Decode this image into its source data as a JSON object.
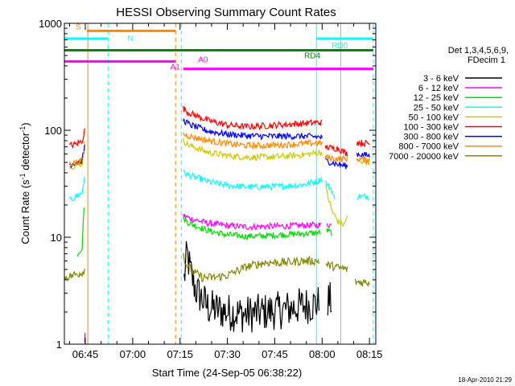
{
  "chart_data": {
    "type": "line",
    "title": "HESSI Observing Summary Count Rates",
    "xlabel": "Start Time (24-Sep-05 06:38:22)",
    "ylabel_main": "Count Rate (s",
    "ylabel_sup1": "-1",
    "ylabel_mid": " detector",
    "ylabel_sup2": "-1",
    "ylabel_end": ")",
    "yscale": "log",
    "ylim": [
      1,
      1000
    ],
    "xlim_minutes": [
      398.37,
      497.0
    ],
    "xticks": [
      {
        "label": "06:45",
        "value": 405
      },
      {
        "label": "07:00",
        "value": 420
      },
      {
        "label": "07:15",
        "value": 435
      },
      {
        "label": "07:30",
        "value": 450
      },
      {
        "label": "07:45",
        "value": 465
      },
      {
        "label": "08:00",
        "value": 480
      },
      {
        "label": "08:15",
        "value": 495
      }
    ],
    "yticks": [
      {
        "label": "1",
        "value": 1
      },
      {
        "label": "10",
        "value": 10
      },
      {
        "label": "100",
        "value": 100
      },
      {
        "label": "1000",
        "value": 1000
      }
    ],
    "legend": {
      "header1": "Det 1,3,4,5,6,9,",
      "header2": "FDecim 1",
      "placement": "right"
    },
    "series": [
      {
        "name": "3 - 6 keV",
        "color": "#000000",
        "segments": [
          [
            [
              436.3,
              4
            ],
            [
              437.2,
              7
            ],
            [
              438.5,
              4.5
            ],
            [
              440,
              3.2
            ],
            [
              444,
              2.2
            ],
            [
              450,
              2.0
            ],
            [
              456,
              1.9
            ],
            [
              462,
              2.0
            ],
            [
              468,
              2.1
            ],
            [
              474,
              2.3
            ],
            [
              479,
              2.4
            ]
          ],
          [
            [
              481.8,
              2.6
            ],
            [
              483,
              2.5
            ]
          ]
        ]
      },
      {
        "name": "6 - 12 keV",
        "color": "#ff00ff",
        "segments": [
          [
            [
              404.8,
              1.02
            ],
            [
              404.9,
              1.2
            ],
            [
              405,
              1.02
            ]
          ],
          [
            [
              436,
              16
            ],
            [
              438,
              15
            ],
            [
              444,
              13.5
            ],
            [
              450,
              12.8
            ],
            [
              456,
              12.5
            ],
            [
              462,
              12.6
            ],
            [
              468,
              12.7
            ],
            [
              474,
              12.9
            ],
            [
              479.5,
              13
            ]
          ],
          [
            [
              481.5,
              13.2
            ],
            [
              483,
              13
            ]
          ]
        ]
      },
      {
        "name": "12 - 25 keV",
        "color": "#00dd00",
        "segments": [
          [
            [
              402.5,
              7
            ],
            [
              404,
              8
            ],
            [
              404.6,
              20
            ]
          ],
          [
            [
              436,
              15
            ],
            [
              438,
              13.5
            ],
            [
              444,
              11.5
            ],
            [
              450,
              10.5
            ],
            [
              456,
              10.2
            ],
            [
              462,
              10.3
            ],
            [
              468,
              10.6
            ],
            [
              474,
              10.8
            ],
            [
              479.5,
              11
            ]
          ],
          [
            [
              481.5,
              11.5
            ],
            [
              483,
              11
            ]
          ]
        ]
      },
      {
        "name": "25 - 50 keV",
        "color": "#00ffff",
        "segments": [
          [
            [
              400,
              22
            ],
            [
              402,
              24
            ],
            [
              404,
              26
            ],
            [
              404.8,
              38
            ]
          ],
          [
            [
              436.2,
              40
            ],
            [
              438,
              38
            ],
            [
              444,
              33
            ],
            [
              450,
              30.5
            ],
            [
              456,
              29.5
            ],
            [
              462,
              29.5
            ],
            [
              468,
              30
            ],
            [
              474,
              31
            ],
            [
              478,
              33
            ],
            [
              480,
              35
            ]
          ],
          [
            [
              481,
              33
            ],
            [
              482,
              30
            ],
            [
              483,
              28
            ],
            [
              484,
              22
            ]
          ],
          [
            [
              491,
              24
            ],
            [
              495,
              24
            ]
          ]
        ]
      },
      {
        "name": "50 - 100 keV",
        "color": "#cccc00",
        "segments": [
          [
            [
              400,
              46
            ],
            [
              402,
              47
            ],
            [
              404,
              49
            ],
            [
              404.8,
              75
            ]
          ],
          [
            [
              436,
              80
            ],
            [
              438,
              72
            ],
            [
              444,
              62
            ],
            [
              450,
              58
            ],
            [
              456,
              56
            ],
            [
              462,
              56
            ],
            [
              468,
              57
            ],
            [
              474,
              59
            ],
            [
              478,
              61
            ],
            [
              480,
              62
            ]
          ],
          [
            [
              481,
              30
            ],
            [
              483,
              18
            ],
            [
              485,
              14
            ],
            [
              487,
              13
            ],
            [
              488,
              16
            ]
          ],
          [
            [
              490.8,
              52
            ],
            [
              495,
              51
            ]
          ]
        ]
      },
      {
        "name": "100 - 300 keV",
        "color": "#ff0000",
        "segments": [
          [
            [
              400,
              72
            ],
            [
              402,
              74
            ],
            [
              404,
              80
            ],
            [
              405,
              105
            ]
          ],
          [
            [
              436,
              160
            ],
            [
              438,
              145
            ],
            [
              444,
              123
            ],
            [
              450,
              112
            ],
            [
              456,
              108
            ],
            [
              462,
              110
            ],
            [
              468,
              113
            ],
            [
              474,
              116
            ],
            [
              478,
              118
            ],
            [
              480,
              118
            ]
          ],
          [
            [
              481,
              70
            ],
            [
              483,
              68
            ],
            [
              485,
              68
            ],
            [
              488,
              60
            ]
          ],
          [
            [
              491,
              77
            ],
            [
              495,
              75
            ]
          ]
        ]
      },
      {
        "name": "300 - 800 keV",
        "color": "#0000ff",
        "segments": [
          [
            [
              400,
              48
            ],
            [
              402,
              50
            ],
            [
              404,
              52
            ],
            [
              404.8,
              70
            ]
          ],
          [
            [
              436,
              125
            ],
            [
              438,
              113
            ],
            [
              444,
              98
            ],
            [
              450,
              92
            ],
            [
              456,
              89
            ],
            [
              462,
              88
            ],
            [
              468,
              88
            ],
            [
              474,
              88
            ],
            [
              478,
              87
            ],
            [
              480,
              86
            ]
          ],
          [
            [
              481,
              52
            ],
            [
              483,
              50
            ],
            [
              485,
              48
            ],
            [
              488,
              46
            ]
          ],
          [
            [
              491,
              60
            ],
            [
              495,
              58
            ]
          ]
        ]
      },
      {
        "name": "800 - 7000 keV",
        "color": "#ff8800",
        "segments": [
          [
            [
              400,
              49
            ],
            [
              402,
              50
            ],
            [
              404,
              52
            ],
            [
              404.8,
              66
            ]
          ],
          [
            [
              436,
              92
            ],
            [
              438,
              88
            ],
            [
              444,
              80
            ],
            [
              450,
              75
            ],
            [
              456,
              72
            ],
            [
              462,
              72
            ],
            [
              468,
              73
            ],
            [
              474,
              75
            ],
            [
              478,
              76
            ],
            [
              480,
              76
            ]
          ],
          [
            [
              481,
              56
            ],
            [
              483,
              55
            ],
            [
              485,
              54
            ],
            [
              488,
              54
            ]
          ],
          [
            [
              491,
              54
            ],
            [
              495,
              53
            ]
          ]
        ]
      },
      {
        "name": "7000 - 20000 keV",
        "color": "#888800",
        "segments": [
          [
            [
              398.5,
              4.2
            ],
            [
              400,
              4.3
            ],
            [
              402,
              4.5
            ],
            [
              404,
              4.7
            ],
            [
              404.8,
              5
            ]
          ],
          [
            [
              436,
              7
            ],
            [
              437,
              5.5
            ],
            [
              439,
              4.8
            ],
            [
              442,
              4.2
            ],
            [
              446,
              4.2
            ],
            [
              450,
              4.4
            ],
            [
              456,
              5.3
            ],
            [
              462,
              5.8
            ],
            [
              468,
              5.8
            ],
            [
              474,
              6.0
            ],
            [
              479,
              6.0
            ]
          ],
          [
            [
              481.2,
              5.5
            ],
            [
              483,
              5.4
            ],
            [
              485,
              5.2
            ],
            [
              488,
              5
            ]
          ],
          [
            [
              490.5,
              3.8
            ],
            [
              495,
              3.8
            ]
          ]
        ]
      }
    ],
    "annotations": {
      "flag_bars": [
        {
          "label": "S",
          "color": "#ff8800",
          "y": 850,
          "x0": 405.5,
          "x1": 433.6
        },
        {
          "label": "N",
          "color": "#00ffff",
          "y": 720,
          "x0": 398.4,
          "x1": 412.2
        },
        {
          "label": "RD0",
          "color": "#00ffff",
          "y": 720,
          "x0": 478.2,
          "x1": 496.2
        },
        {
          "label": "RD4",
          "color": "#008800",
          "y": 560,
          "x0": 398.4,
          "x1": 496.2
        },
        {
          "label": "A0",
          "color": "#ff00ff",
          "y": 440,
          "x0": 398.4,
          "x1": 433.5
        },
        {
          "label": "A1",
          "color": "#ff00ff",
          "y": 375,
          "x0": 436.0,
          "x1": 496.2
        }
      ],
      "vlines": [
        {
          "x": 405.8,
          "color": "#ff8800",
          "dash": false
        },
        {
          "x": 412.2,
          "color": "#00ffff",
          "dash": true
        },
        {
          "x": 433.6,
          "color": "#ff8800",
          "dash": true
        },
        {
          "x": 435.4,
          "color": "#00ffff",
          "dash": true
        },
        {
          "x": 478.2,
          "color": "#00ffff",
          "dash": false
        },
        {
          "x": 485.9,
          "color": "#00ffff",
          "dash": false
        },
        {
          "x": 496.2,
          "color": "#00ffff",
          "dash": true
        }
      ]
    },
    "footer_timestamp": "18-Apr-2010 21:29"
  }
}
